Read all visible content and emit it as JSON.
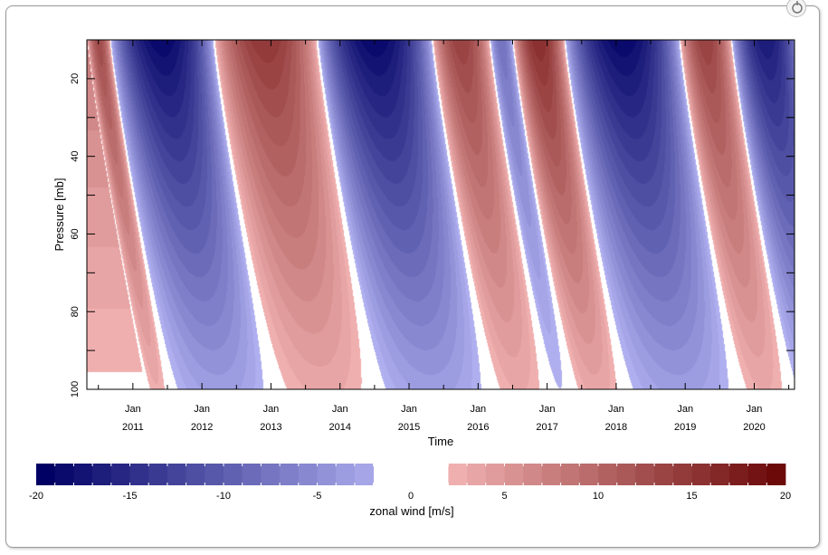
{
  "chart_data": {
    "type": "heatmap",
    "title": "",
    "xlabel": "Time",
    "ylabel": "Pressure [mb]",
    "colorbar_label": "zonal wind [m/s]",
    "x_tick_labels": [
      {
        "month": "Jan",
        "year": "2011"
      },
      {
        "month": "Jan",
        "year": "2012"
      },
      {
        "month": "Jan",
        "year": "2013"
      },
      {
        "month": "Jan",
        "year": "2014"
      },
      {
        "month": "Jan",
        "year": "2015"
      },
      {
        "month": "Jan",
        "year": "2016"
      },
      {
        "month": "Jan",
        "year": "2017"
      },
      {
        "month": "Jan",
        "year": "2018"
      },
      {
        "month": "Jan",
        "year": "2019"
      },
      {
        "month": "Jan",
        "year": "2020"
      }
    ],
    "xlim": [
      "2010-05",
      "2020-08"
    ],
    "y_ticks": [
      20,
      40,
      60,
      80,
      100
    ],
    "ylim": [
      10,
      100
    ],
    "y_inverted": true,
    "colorbar_ticks": [
      -20,
      -15,
      -10,
      -5,
      0,
      5,
      10,
      15,
      20
    ],
    "contour_step": 1,
    "blank_band": [
      -2,
      2
    ],
    "colors": {
      "negative": "#000064",
      "positive": "#640000",
      "neutral": "#ffffff"
    },
    "phase_boundaries_10mb": [
      "2010-09",
      "2012-03",
      "2013-09",
      "2015-05",
      "2016-03",
      "2017-04",
      "2018-12",
      "2019-09"
    ],
    "easterly_phases": [
      {
        "start": "2010-09",
        "end": "2012-03",
        "peak": -20
      },
      {
        "start": "2013-09",
        "end": "2015-05",
        "peak": -20
      },
      {
        "start": "2016-03",
        "end": "2016-07",
        "peak": -9
      },
      {
        "start": "2017-04",
        "end": "2018-12",
        "peak": -20
      },
      {
        "start": "2019-09",
        "end": "2020-09",
        "peak": -18
      }
    ],
    "westerly_phases": [
      {
        "start": "2010-05",
        "end": "2010-09",
        "peak": 13
      },
      {
        "start": "2012-03",
        "end": "2013-09",
        "peak": 15
      },
      {
        "start": "2015-05",
        "end": "2016-03",
        "peak": 14
      },
      {
        "start": "2016-07",
        "end": "2017-04",
        "peak": 16
      },
      {
        "start": "2018-12",
        "end": "2019-09",
        "peak": 14
      }
    ]
  }
}
